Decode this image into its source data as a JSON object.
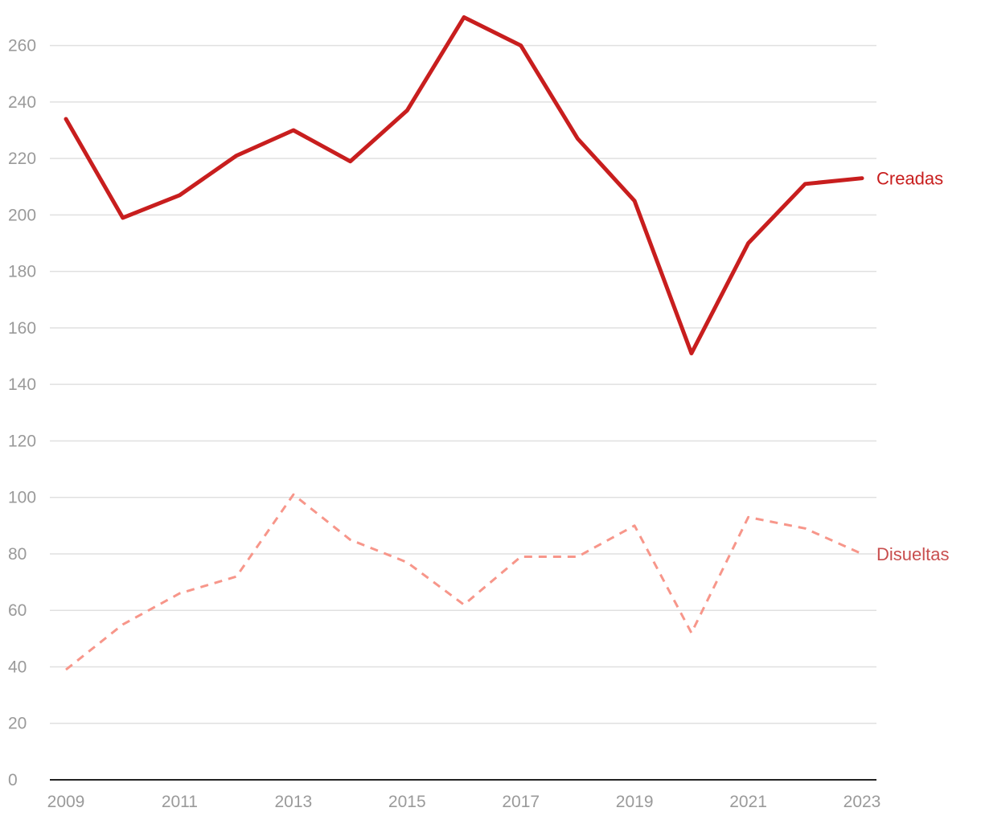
{
  "chart_data": {
    "type": "line",
    "x": [
      2009,
      2010,
      2011,
      2012,
      2013,
      2014,
      2015,
      2016,
      2017,
      2018,
      2019,
      2020,
      2021,
      2022,
      2023
    ],
    "x_tick_labels": [
      "2009",
      "2011",
      "2013",
      "2015",
      "2017",
      "2019",
      "2021",
      "2023"
    ],
    "y_tick_labels": [
      "0",
      "20",
      "40",
      "60",
      "80",
      "100",
      "120",
      "140",
      "160",
      "180",
      "200",
      "220",
      "240",
      "260"
    ],
    "ylim": [
      0,
      260
    ],
    "grid": true,
    "legend": "direct labels at line ends (right)",
    "series": [
      {
        "name": "Creadas",
        "color": "#c81e1e",
        "style": "solid",
        "values": [
          234,
          199,
          207,
          221,
          230,
          219,
          237,
          270,
          260,
          227,
          205,
          151,
          190,
          211,
          213
        ]
      },
      {
        "name": "Disueltas",
        "color": "#f7968a",
        "label_color": "#c84e4e",
        "style": "dashed",
        "values": [
          39,
          55,
          66,
          72,
          101,
          85,
          77,
          62,
          79,
          79,
          90,
          52,
          93,
          89,
          80
        ]
      }
    ]
  }
}
